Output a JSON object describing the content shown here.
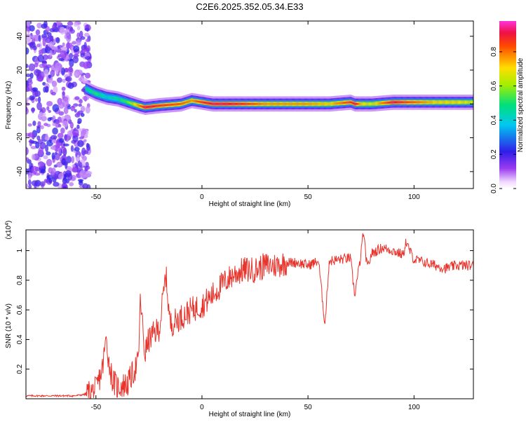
{
  "title": "C2E6.2025.352.05.34.E33",
  "chart_data": [
    {
      "type": "heatmap",
      "xlabel": "Height of straight line (km)",
      "ylabel": "Frequency (Hz)",
      "xlim": [
        -83,
        128
      ],
      "ylim": [
        -50,
        49
      ],
      "xticks": [
        -50,
        0,
        50,
        100
      ],
      "yticks": [
        -40,
        -20,
        0,
        20,
        40
      ],
      "colorbar": {
        "label": "Normalized spectral amplitude",
        "range": [
          0,
          0.98
        ],
        "ticks": [
          0.0,
          0.2,
          0.4,
          0.6,
          0.8
        ]
      },
      "ridge": {
        "x": [
          -55,
          -50,
          -45,
          -40,
          -35,
          -30,
          -27,
          -20,
          -10,
          -5,
          0,
          5,
          10,
          20,
          30,
          40,
          50,
          60,
          70,
          72,
          75,
          80,
          90,
          100,
          110,
          120,
          128
        ],
        "y": [
          9,
          6,
          4,
          3,
          1,
          -1,
          -2,
          -1,
          0,
          2,
          1,
          0,
          0,
          0,
          0,
          0,
          0,
          0,
          1,
          0,
          0,
          0,
          1,
          1,
          1,
          1,
          1
        ],
        "amplitude": [
          0.5,
          0.55,
          0.45,
          0.5,
          0.6,
          0.8,
          0.95,
          0.9,
          0.85,
          0.8,
          0.9,
          0.95,
          0.95,
          0.9,
          0.8,
          0.8,
          0.8,
          0.75,
          0.9,
          0.95,
          0.75,
          0.7,
          0.95,
          0.85,
          0.75,
          0.75,
          0.7
        ]
      },
      "noise_region_x": [
        -83,
        -53
      ]
    },
    {
      "type": "line",
      "xlabel": "Height of straight line (km)",
      "ylabel": "SNR (10 * v/v)",
      "yscale_note": "(x10^4)",
      "xlim": [
        -83,
        128
      ],
      "ylim": [
        0,
        1.14
      ],
      "xticks": [
        -50,
        0,
        50,
        100
      ],
      "yticks": [
        0.2,
        0.4,
        0.6,
        0.8,
        1
      ],
      "color": "#e8332b",
      "series": [
        {
          "x": [
            -83,
            -70,
            -60,
            -55,
            -50,
            -47,
            -45,
            -44,
            -42,
            -40,
            -35,
            -30,
            -29,
            -27,
            -25,
            -20,
            -17,
            -15,
            -10,
            -5,
            0,
            5,
            10,
            15,
            20,
            25,
            30,
            35,
            40,
            45,
            50,
            55,
            58,
            60,
            65,
            70,
            72,
            75,
            76,
            78,
            80,
            85,
            90,
            95,
            96,
            100,
            105,
            110,
            115,
            120,
            128
          ],
          "y": [
            0.02,
            0.02,
            0.02,
            0.03,
            0.06,
            0.2,
            0.42,
            0.25,
            0.12,
            0.08,
            0.1,
            0.25,
            0.68,
            0.3,
            0.4,
            0.48,
            0.84,
            0.5,
            0.55,
            0.6,
            0.63,
            0.7,
            0.78,
            0.84,
            0.87,
            0.87,
            0.9,
            0.9,
            0.92,
            0.92,
            0.9,
            0.93,
            0.5,
            0.93,
            0.94,
            0.95,
            0.7,
            0.97,
            1.13,
            0.88,
            0.98,
            1.02,
            1.0,
            0.97,
            1.06,
            0.94,
            0.92,
            0.9,
            0.88,
            0.9,
            0.9
          ]
        }
      ]
    }
  ]
}
